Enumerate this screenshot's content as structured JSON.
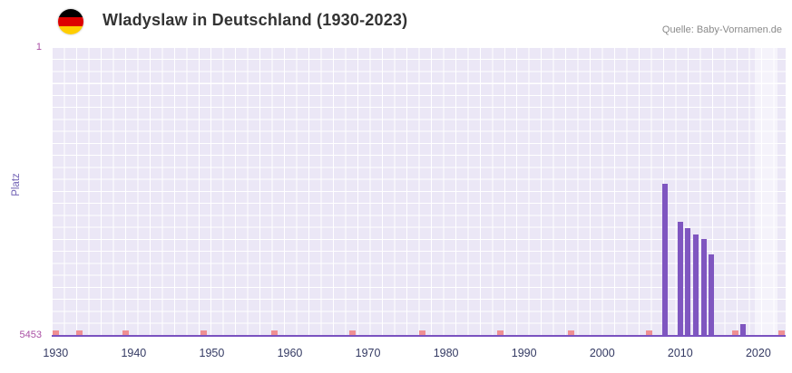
{
  "chart_data": {
    "type": "bar",
    "title": "Wladyslaw in Deutschland (1930-2023)",
    "source": "Quelle: Baby-Vornamen.de",
    "ylabel": "Platz",
    "y_axis": {
      "min": 1,
      "max": 5453,
      "inverted": true,
      "top_tick_label": "1",
      "bottom_tick_label": "5453"
    },
    "x_axis": {
      "range": [
        1929.5,
        2023.5
      ],
      "tick_years": [
        1930,
        1940,
        1950,
        1960,
        1970,
        1980,
        1990,
        2000,
        2010,
        2020
      ]
    },
    "bars": [
      {
        "year": 2008,
        "rank": 2590
      },
      {
        "year": 2010,
        "rank": 3310
      },
      {
        "year": 2011,
        "rank": 3430
      },
      {
        "year": 2012,
        "rank": 3550
      },
      {
        "year": 2013,
        "rank": 3640
      },
      {
        "year": 2014,
        "rank": 3930
      },
      {
        "year": 2018,
        "rank": 5250
      }
    ],
    "marker_years": [
      1930,
      1933,
      1939,
      1949,
      1958,
      1968,
      1977,
      1987,
      1996,
      2006,
      2017,
      2023
    ],
    "highlight_band": {
      "from": 2019.5,
      "to": 2022.5
    },
    "grid": true,
    "colors": {
      "bar": "#7f56c0",
      "marker": "#ef8f93",
      "plot_bg": "#ebe7f6",
      "grid": "#ffffff",
      "axis_line": "#7a52c0",
      "y_tick_label": "#a94fa4",
      "x_tick_label": "#343a63",
      "y_axis_title": "#6f5fb3",
      "title": "#333333",
      "source": "#8a8a8a"
    },
    "flag_stripes": [
      "#000000",
      "#dd0000",
      "#ffce00"
    ]
  }
}
